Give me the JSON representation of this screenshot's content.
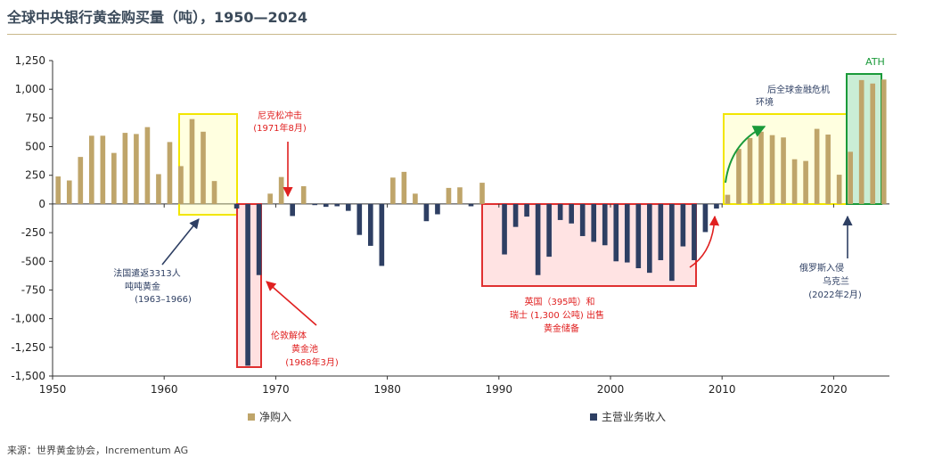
{
  "chart_data": {
    "type": "bar",
    "title": "全球中央银行黄金购买量（吨），1950—2024",
    "x": [
      1950,
      1951,
      1952,
      1953,
      1954,
      1955,
      1956,
      1957,
      1958,
      1959,
      1960,
      1961,
      1962,
      1963,
      1964,
      1965,
      1966,
      1967,
      1968,
      1969,
      1970,
      1971,
      1972,
      1973,
      1974,
      1975,
      1976,
      1977,
      1978,
      1979,
      1980,
      1981,
      1982,
      1983,
      1984,
      1985,
      1986,
      1987,
      1988,
      1989,
      1990,
      1991,
      1992,
      1993,
      1994,
      1995,
      1996,
      1997,
      1998,
      1999,
      2000,
      2001,
      2002,
      2003,
      2004,
      2005,
      2006,
      2007,
      2008,
      2009,
      2010,
      2011,
      2012,
      2013,
      2014,
      2015,
      2016,
      2017,
      2018,
      2019,
      2020,
      2021,
      2022,
      2023,
      2024
    ],
    "series": [
      {
        "name": "净购入",
        "color": "#bfa56a",
        "values": [
          240,
          205,
          410,
          595,
          595,
          445,
          620,
          610,
          670,
          260,
          540,
          330,
          740,
          630,
          200,
          null,
          null,
          null,
          null,
          90,
          235,
          null,
          155,
          null,
          null,
          null,
          null,
          null,
          null,
          null,
          230,
          280,
          90,
          null,
          null,
          140,
          145,
          null,
          185,
          null,
          null,
          null,
          null,
          null,
          null,
          null,
          null,
          null,
          null,
          null,
          null,
          null,
          null,
          null,
          null,
          null,
          null,
          null,
          null,
          null,
          80,
          480,
          575,
          630,
          600,
          580,
          390,
          375,
          655,
          605,
          255,
          455,
          1080,
          1050,
          1085
        ]
      },
      {
        "name": "主营业务收入",
        "color": "#2e3f63",
        "values": [
          null,
          null,
          null,
          null,
          null,
          null,
          null,
          null,
          null,
          null,
          null,
          null,
          null,
          null,
          null,
          null,
          -40,
          -1410,
          -620,
          null,
          null,
          -105,
          null,
          -10,
          -25,
          -20,
          -60,
          -270,
          -365,
          -540,
          null,
          null,
          null,
          -150,
          -90,
          null,
          null,
          -20,
          null,
          null,
          -440,
          -200,
          -110,
          -620,
          -460,
          -140,
          -170,
          -280,
          -330,
          -360,
          -500,
          -510,
          -560,
          -600,
          -490,
          -670,
          -370,
          -490,
          -245,
          -40,
          null,
          null,
          null,
          null,
          null,
          null,
          null,
          null,
          null,
          null,
          null,
          null,
          null,
          null,
          null
        ]
      }
    ],
    "ylim": [
      -1500,
      1250
    ],
    "yticks": [
      "1,250",
      "1,000",
      "750",
      "500",
      "250",
      "0",
      "-250",
      "-500",
      "-750",
      "-1,000",
      "-1,250",
      "-1,500"
    ],
    "ytick_values": [
      1250,
      1000,
      750,
      500,
      250,
      0,
      -250,
      -500,
      -750,
      -1000,
      -1250,
      -1500
    ],
    "xticks": [
      "1950",
      "1960",
      "1970",
      "1980",
      "1990",
      "2000",
      "2010",
      "2020"
    ],
    "xtick_values": [
      1950,
      1960,
      1970,
      1980,
      1990,
      2000,
      2010,
      2020
    ],
    "xlim": [
      1950,
      2025
    ],
    "legend": {
      "position": "bottom",
      "net_label": "净购入",
      "sales_label": "主营业务收入"
    },
    "annotations": {
      "france": {
        "line1": "法国遣返3313人",
        "line2": "吨吨黄金",
        "line3": "(1963–1966)"
      },
      "nixon": {
        "line1": "尼克松冲击",
        "line2": "(1971年8月)"
      },
      "london": {
        "line1": "伦敦解体",
        "line2": "黄金池",
        "line3": "(1968年3月)"
      },
      "uk_swiss": {
        "line1": "英国（395吨）和",
        "line2": "瑞士 (1,300 公吨) 出售",
        "line3": "黄金储备"
      },
      "gfc": {
        "line1": "后全球金融危机",
        "line2": "环境"
      },
      "ath": {
        "line1": "ATH"
      },
      "russia": {
        "line1": "俄罗斯入侵",
        "line2": "乌克兰",
        "line3": "(2022年2月)"
      }
    }
  },
  "source": "来源：世界黄金协会，Incrementum AG"
}
